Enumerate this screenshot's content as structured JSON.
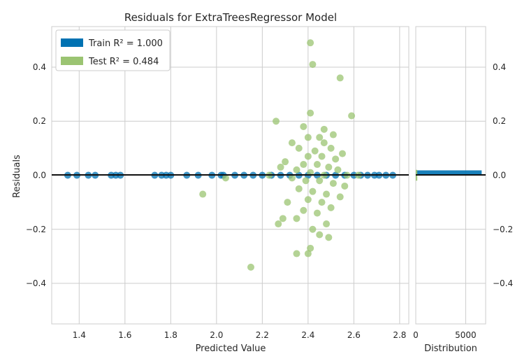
{
  "chart_data": {
    "type": "scatter",
    "title": "Residuals for ExtraTreesRegressor Model",
    "xlabel": "Predicted Value",
    "ylabel": "Residuals",
    "xlim": [
      1.28,
      2.84
    ],
    "ylim": [
      -0.55,
      0.55
    ],
    "x_ticks": [
      "1.4",
      "1.6",
      "1.8",
      "2.0",
      "2.2",
      "2.4",
      "2.6",
      "2.8"
    ],
    "y_ticks": [
      "−0.4",
      "−0.2",
      "0.0",
      "0.2",
      "0.4"
    ],
    "grid": true,
    "legend_position": "top-left",
    "legend": [
      {
        "label": "Train R² = 1.000",
        "color": "#0072B2"
      },
      {
        "label": "Test R² = 0.484",
        "color": "#9BC472"
      }
    ],
    "series": [
      {
        "name": "Train R² = 1.000",
        "color": "#0072B2",
        "points": [
          [
            1.35,
            0.0
          ],
          [
            1.39,
            0.0
          ],
          [
            1.44,
            0.0
          ],
          [
            1.47,
            0.0
          ],
          [
            1.54,
            0.0
          ],
          [
            1.56,
            0.0
          ],
          [
            1.58,
            0.0
          ],
          [
            1.73,
            0.0
          ],
          [
            1.76,
            0.0
          ],
          [
            1.78,
            0.0
          ],
          [
            1.8,
            0.0
          ],
          [
            1.87,
            0.0
          ],
          [
            1.92,
            0.0
          ],
          [
            1.98,
            0.0
          ],
          [
            2.02,
            0.0
          ],
          [
            2.03,
            0.0
          ],
          [
            2.08,
            0.0
          ],
          [
            2.12,
            0.0
          ],
          [
            2.16,
            0.0
          ],
          [
            2.2,
            0.0
          ],
          [
            2.24,
            0.0
          ],
          [
            2.28,
            0.0
          ],
          [
            2.32,
            0.0
          ],
          [
            2.36,
            0.0
          ],
          [
            2.4,
            0.0
          ],
          [
            2.44,
            0.0
          ],
          [
            2.48,
            0.0
          ],
          [
            2.52,
            0.0
          ],
          [
            2.56,
            0.0
          ],
          [
            2.6,
            0.0
          ],
          [
            2.63,
            0.0
          ],
          [
            2.66,
            0.0
          ],
          [
            2.69,
            0.0
          ],
          [
            2.71,
            0.0
          ],
          [
            2.74,
            0.0
          ],
          [
            2.77,
            0.0
          ]
        ]
      },
      {
        "name": "Test R² = 0.484",
        "color": "#9BC472",
        "points": [
          [
            2.41,
            0.49
          ],
          [
            2.42,
            0.41
          ],
          [
            2.54,
            0.36
          ],
          [
            2.41,
            0.23
          ],
          [
            2.59,
            0.22
          ],
          [
            2.26,
            0.2
          ],
          [
            2.38,
            0.18
          ],
          [
            2.47,
            0.17
          ],
          [
            2.51,
            0.15
          ],
          [
            2.4,
            0.14
          ],
          [
            2.45,
            0.14
          ],
          [
            2.33,
            0.12
          ],
          [
            2.47,
            0.12
          ],
          [
            2.36,
            0.1
          ],
          [
            2.5,
            0.1
          ],
          [
            2.43,
            0.09
          ],
          [
            2.55,
            0.08
          ],
          [
            2.4,
            0.07
          ],
          [
            2.46,
            0.07
          ],
          [
            2.52,
            0.06
          ],
          [
            2.3,
            0.05
          ],
          [
            2.38,
            0.04
          ],
          [
            2.44,
            0.04
          ],
          [
            2.49,
            0.03
          ],
          [
            2.53,
            0.02
          ],
          [
            2.35,
            0.02
          ],
          [
            2.41,
            0.01
          ],
          [
            2.47,
            0.0
          ],
          [
            2.57,
            0.0
          ],
          [
            2.62,
            0.0
          ],
          [
            2.33,
            -0.01
          ],
          [
            2.39,
            -0.02
          ],
          [
            2.45,
            -0.02
          ],
          [
            2.51,
            -0.03
          ],
          [
            2.56,
            -0.04
          ],
          [
            2.36,
            -0.05
          ],
          [
            2.42,
            -0.06
          ],
          [
            2.48,
            -0.07
          ],
          [
            2.54,
            -0.08
          ],
          [
            2.4,
            -0.09
          ],
          [
            2.46,
            -0.1
          ],
          [
            2.31,
            -0.1
          ],
          [
            2.5,
            -0.12
          ],
          [
            2.38,
            -0.13
          ],
          [
            2.44,
            -0.14
          ],
          [
            2.29,
            -0.16
          ],
          [
            2.35,
            -0.16
          ],
          [
            2.48,
            -0.18
          ],
          [
            2.27,
            -0.18
          ],
          [
            2.42,
            -0.2
          ],
          [
            2.45,
            -0.22
          ],
          [
            2.49,
            -0.23
          ],
          [
            2.41,
            -0.27
          ],
          [
            2.4,
            -0.29
          ],
          [
            2.35,
            -0.29
          ],
          [
            2.15,
            -0.34
          ],
          [
            1.94,
            -0.07
          ],
          [
            2.04,
            -0.01
          ],
          [
            2.23,
            0.0
          ],
          [
            2.28,
            0.03
          ]
        ]
      }
    ],
    "distribution_panel": {
      "xlabel": "Distribution",
      "x_ticks": [
        "0",
        "5000"
      ],
      "xlim": [
        0,
        7000
      ],
      "y_ticks": [
        "−0.4",
        "−0.2",
        "0.0",
        "0.2",
        "0.4"
      ],
      "bars": [
        {
          "series": "Train R² = 1.000",
          "color": "#0072B2",
          "y": 0.0,
          "count": 6600
        },
        {
          "series": "Test R² = 0.484",
          "color": "#9BC472",
          "y": 0.0,
          "count": 150
        }
      ]
    }
  }
}
